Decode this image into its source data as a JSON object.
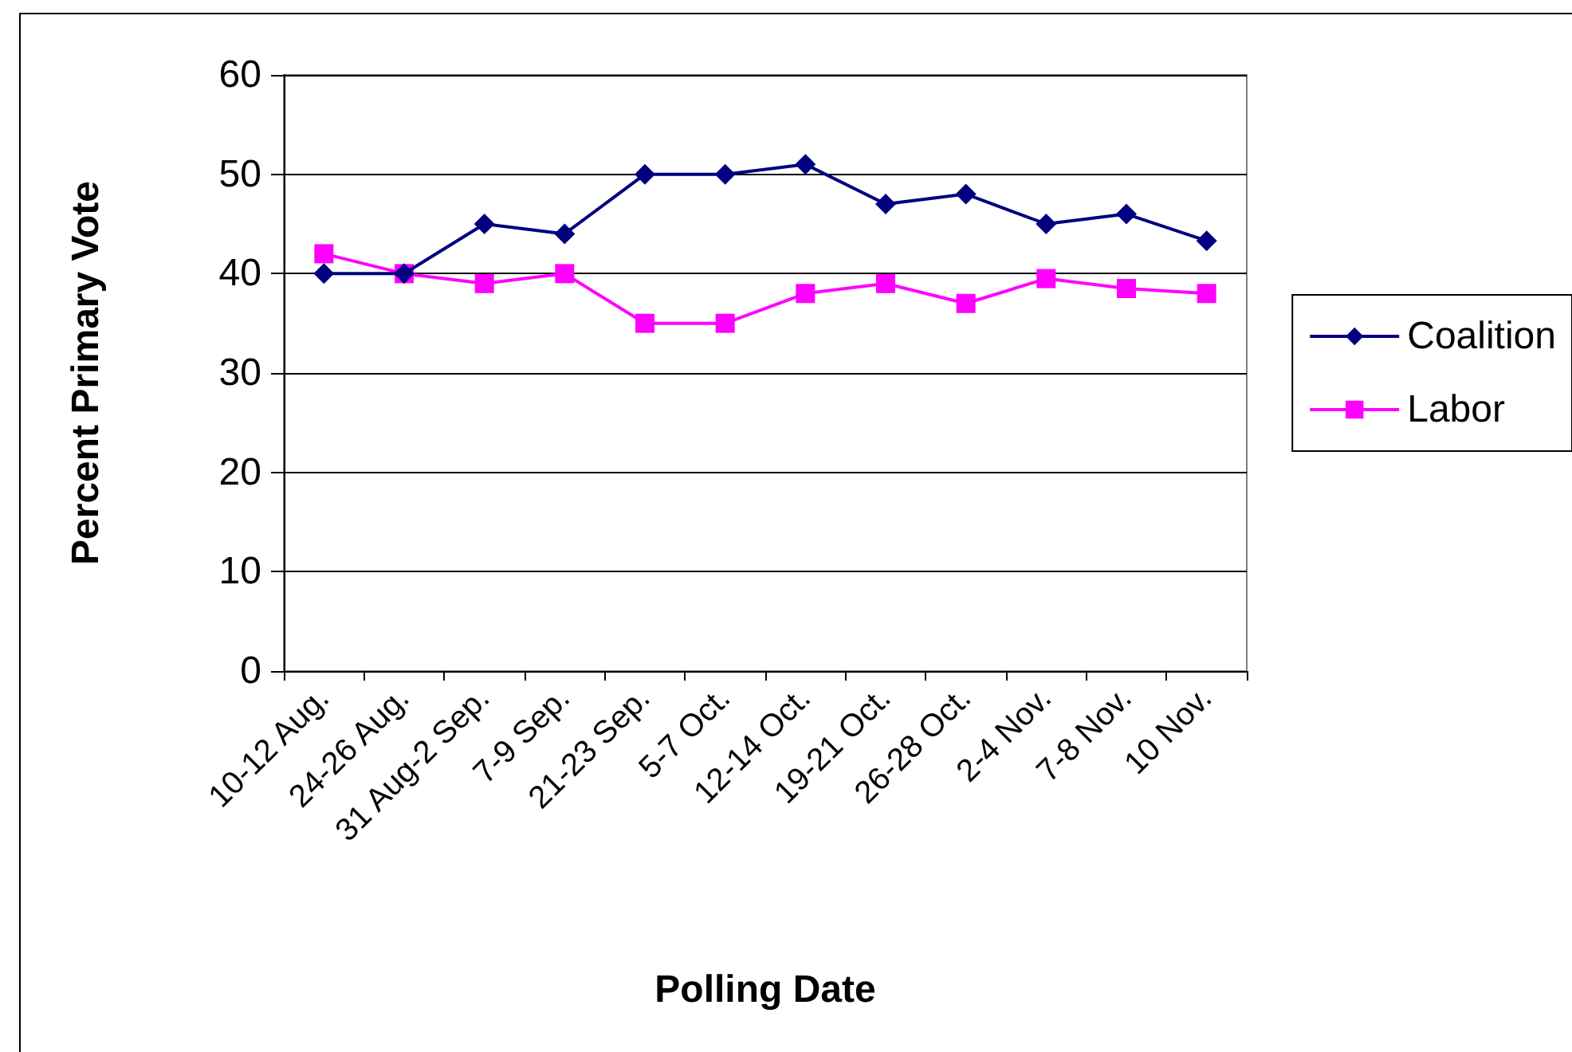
{
  "chart_data": {
    "type": "line",
    "xlabel": "Polling Date",
    "ylabel": "Percent Primary Vote",
    "categories": [
      "10-12 Aug.",
      "24-26 Aug.",
      "31 Aug-2 Sep.",
      "7-9 Sep.",
      "21-23 Sep.",
      "5-7 Oct.",
      "12-14 Oct.",
      "19-21 Oct.",
      "26-28 Oct.",
      "2-4 Nov.",
      "7-8 Nov.",
      "10 Nov."
    ],
    "series": [
      {
        "name": "Coalition",
        "color": "#000080",
        "marker": "diamond",
        "values": [
          40,
          40,
          45,
          44,
          50,
          50,
          51,
          47,
          48,
          45,
          46,
          43.3
        ]
      },
      {
        "name": "Labor",
        "color": "#ff00ff",
        "marker": "square",
        "values": [
          42,
          40,
          39,
          40,
          35,
          35,
          38,
          39,
          37,
          39.5,
          38.5,
          38
        ]
      }
    ],
    "ylim": [
      0,
      60
    ],
    "yticks": [
      0,
      10,
      20,
      30,
      40,
      50,
      60
    ],
    "grid": "y",
    "legend": "right"
  }
}
